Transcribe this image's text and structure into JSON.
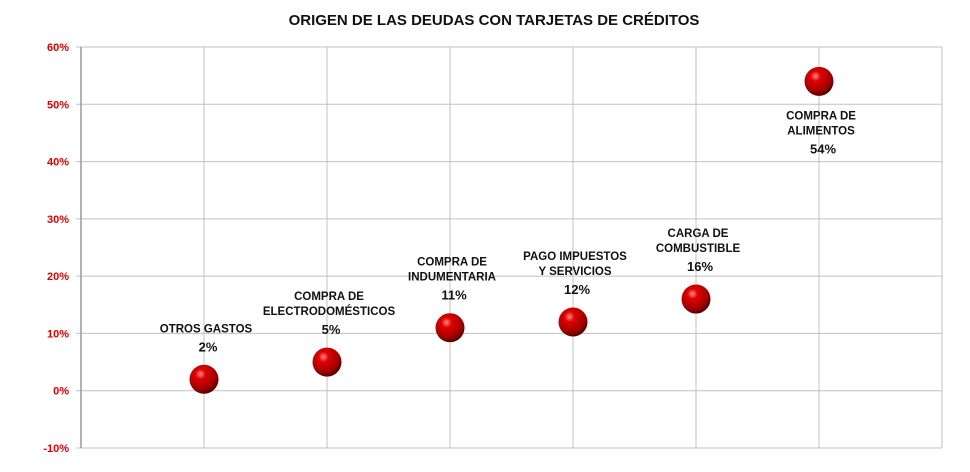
{
  "chart_data": {
    "type": "scatter",
    "title": "ORIGEN DE LAS DEUDAS CON TARJETAS DE CRÉDITOS",
    "xlabel": "",
    "ylabel": "",
    "ylim": [
      -0.1,
      0.6
    ],
    "xlim": [
      0,
      7
    ],
    "grid": true,
    "yticks": [
      -0.1,
      0,
      0.1,
      0.2,
      0.3,
      0.4,
      0.5,
      0.6
    ],
    "ytick_labels": [
      "-10%",
      "0%",
      "10%",
      "20%",
      "30%",
      "40%",
      "50%",
      "60%"
    ],
    "points": [
      {
        "x": 1,
        "y": 0.02,
        "label": [
          "OTROS GASTOS"
        ],
        "value_label": "2%"
      },
      {
        "x": 2,
        "y": 0.05,
        "label": [
          "COMPRA DE",
          "ELECTRODOMÉSTICOS"
        ],
        "value_label": "5%"
      },
      {
        "x": 3,
        "y": 0.11,
        "label": [
          "COMPRA DE",
          "INDUMENTARIA"
        ],
        "value_label": "11%"
      },
      {
        "x": 4,
        "y": 0.12,
        "label": [
          "PAGO IMPUESTOS",
          "Y SERVICIOS"
        ],
        "value_label": "12%"
      },
      {
        "x": 5,
        "y": 0.16,
        "label": [
          "CARGA DE",
          "COMBUSTIBLE"
        ],
        "value_label": "16%"
      },
      {
        "x": 6,
        "y": 0.54,
        "label": [
          "COMPRA DE",
          "ALIMENTOS"
        ],
        "value_label": "54%"
      }
    ],
    "colors": {
      "marker": "#cc0000",
      "tick_label": "#e00000",
      "grid": "#c0c0c0"
    }
  }
}
